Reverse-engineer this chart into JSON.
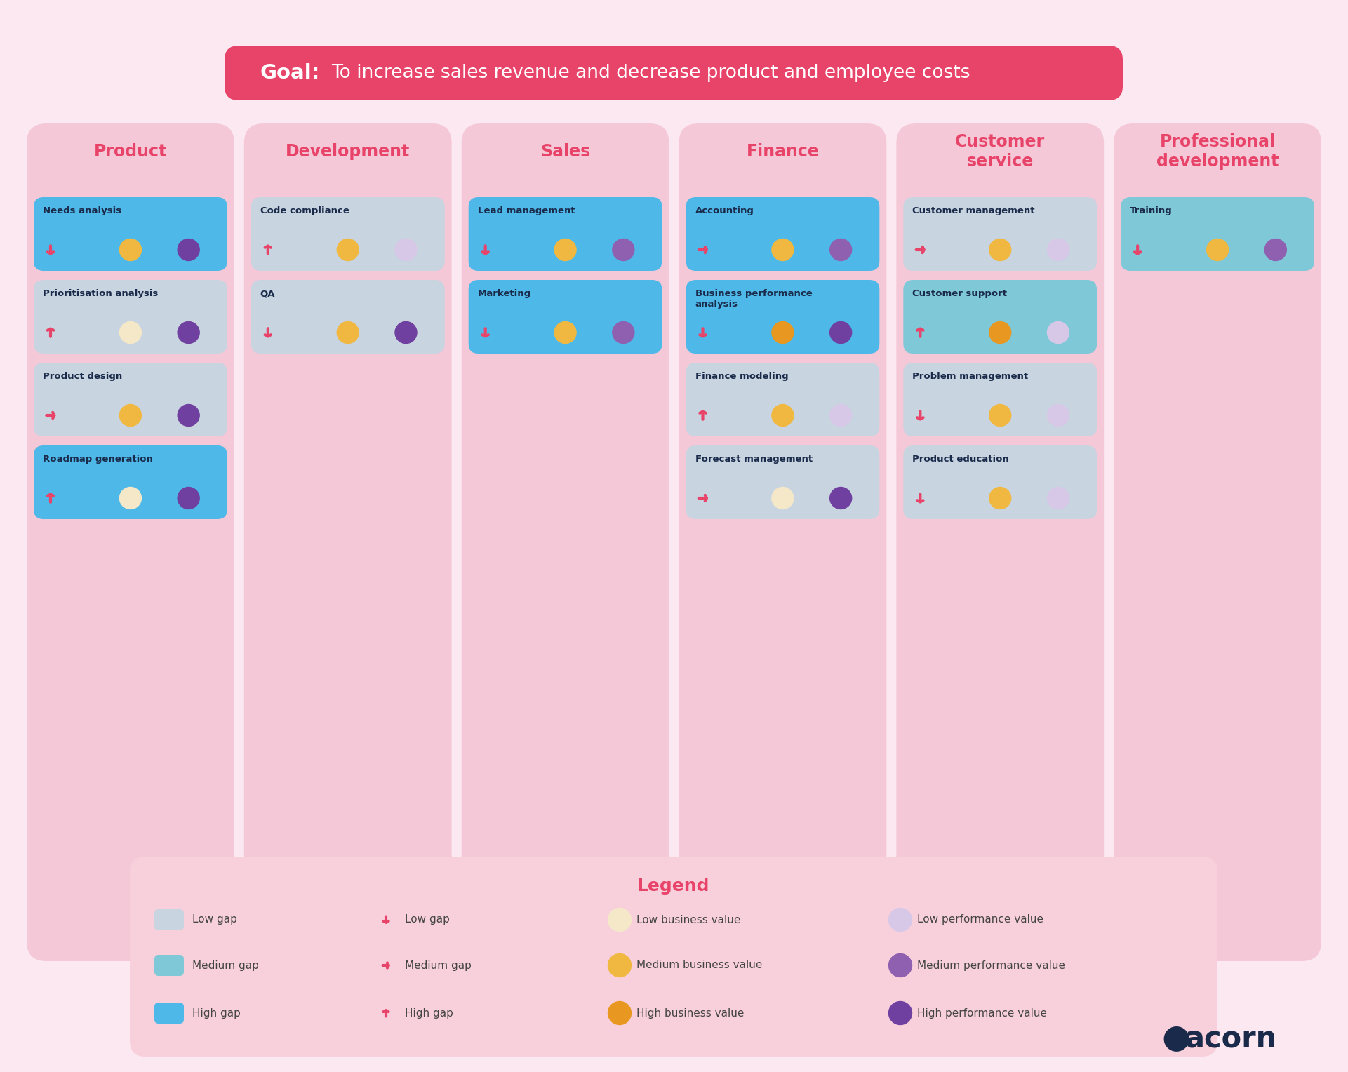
{
  "background_color": "#fce8f0",
  "goal_bg": "#e8446a",
  "title_color": "#e8446a",
  "columns": [
    {
      "title": "Product",
      "col_bg": "#f5c8d8",
      "items": [
        {
          "name": "Needs analysis",
          "gap": "high",
          "arrow": "down",
          "bv": "medium",
          "pv": "high"
        },
        {
          "name": "Prioritisation analysis",
          "gap": "low",
          "arrow": "up",
          "bv": "low",
          "pv": "high"
        },
        {
          "name": "Product design",
          "gap": "low",
          "arrow": "right",
          "bv": "medium",
          "pv": "high"
        },
        {
          "name": "Roadmap generation",
          "gap": "high",
          "arrow": "up",
          "bv": "low",
          "pv": "high"
        }
      ]
    },
    {
      "title": "Development",
      "col_bg": "#f5c8d8",
      "items": [
        {
          "name": "Code compliance",
          "gap": "low",
          "arrow": "up",
          "bv": "medium",
          "pv": "low"
        },
        {
          "name": "QA",
          "gap": "low",
          "arrow": "down",
          "bv": "medium",
          "pv": "high"
        }
      ]
    },
    {
      "title": "Sales",
      "col_bg": "#f5c8d8",
      "items": [
        {
          "name": "Lead management",
          "gap": "high",
          "arrow": "down",
          "bv": "medium",
          "pv": "medium"
        },
        {
          "name": "Marketing",
          "gap": "high",
          "arrow": "down",
          "bv": "medium",
          "pv": "medium"
        }
      ]
    },
    {
      "title": "Finance",
      "col_bg": "#f5c8d8",
      "items": [
        {
          "name": "Accounting",
          "gap": "high",
          "arrow": "right",
          "bv": "medium",
          "pv": "medium"
        },
        {
          "name": "Business performance\nanalysis",
          "gap": "high",
          "arrow": "down",
          "bv": "high",
          "pv": "high"
        },
        {
          "name": "Finance modeling",
          "gap": "low",
          "arrow": "up",
          "bv": "medium",
          "pv": "low"
        },
        {
          "name": "Forecast management",
          "gap": "low",
          "arrow": "right",
          "bv": "low",
          "pv": "high"
        }
      ]
    },
    {
      "title": "Customer\nservice",
      "col_bg": "#f5c8d8",
      "items": [
        {
          "name": "Customer management",
          "gap": "low",
          "arrow": "right",
          "bv": "medium",
          "pv": "low"
        },
        {
          "name": "Customer support",
          "gap": "medium",
          "arrow": "up",
          "bv": "high",
          "pv": "low"
        },
        {
          "name": "Problem management",
          "gap": "low",
          "arrow": "down",
          "bv": "medium",
          "pv": "low"
        },
        {
          "name": "Product education",
          "gap": "low",
          "arrow": "down",
          "bv": "medium",
          "pv": "low"
        }
      ]
    },
    {
      "title": "Professional\ndevelopment",
      "col_bg": "#f5c8d8",
      "items": [
        {
          "name": "Training",
          "gap": "medium",
          "arrow": "down",
          "bv": "medium",
          "pv": "medium"
        }
      ]
    }
  ],
  "gap_colors": {
    "low": "#c8d4e0",
    "medium": "#7ec8d8",
    "high": "#4eb8e8"
  },
  "arrow_color": "#e8446a",
  "bv_colors": {
    "low": "#f5e8c8",
    "medium": "#f0b840",
    "high": "#e89820"
  },
  "pv_colors": {
    "low": "#d8c8e8",
    "medium": "#9060b0",
    "high": "#7040a0"
  },
  "legend": {
    "gap_items": [
      {
        "label": "Low gap",
        "color": "#c8d4e0"
      },
      {
        "label": "Medium gap",
        "color": "#7ec8d8"
      },
      {
        "label": "High gap",
        "color": "#4eb8e8"
      }
    ],
    "arrow_items": [
      {
        "label": "Low gap",
        "arrow": "down"
      },
      {
        "label": "Medium gap",
        "arrow": "right"
      },
      {
        "label": "High gap",
        "arrow": "up"
      }
    ],
    "bv_items": [
      {
        "label": "Low business value",
        "color": "#f5e8c8"
      },
      {
        "label": "Medium business value",
        "color": "#f0b840"
      },
      {
        "label": "High business value",
        "color": "#e89820"
      }
    ],
    "pv_items": [
      {
        "label": "Low performance value",
        "color": "#d8c8e8"
      },
      {
        "label": "Medium performance value",
        "color": "#9060b0"
      },
      {
        "label": "High performance value",
        "color": "#7040a0"
      }
    ]
  }
}
